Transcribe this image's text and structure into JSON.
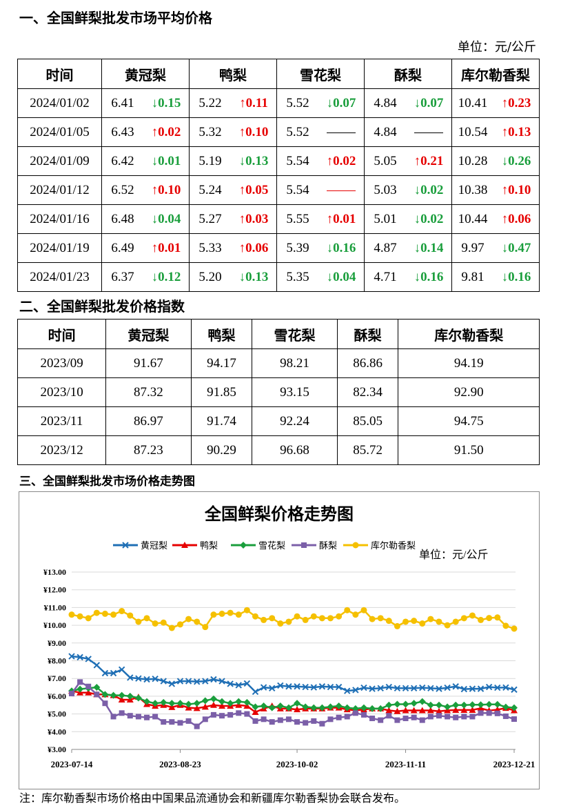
{
  "section1_title": "一、全国鲜梨批发市场平均价格",
  "section2_title": "二、全国鲜梨批发价格指数",
  "section3_title": "三、全国鲜梨批发市场价格走势图",
  "unit_label": "单位：元/公斤",
  "price_table": {
    "headers": [
      "时间",
      "黄冠梨",
      "鸭梨",
      "雪花梨",
      "酥梨",
      "库尔勒香梨"
    ],
    "rows": [
      {
        "date": "2024/01/02",
        "cells": [
          [
            "6.41",
            "↓0.15",
            "down"
          ],
          [
            "5.22",
            "↑0.11",
            "up"
          ],
          [
            "5.52",
            "↓0.07",
            "down"
          ],
          [
            "4.84",
            "↓0.07",
            "down"
          ],
          [
            "10.41",
            "↑0.23",
            "up"
          ]
        ]
      },
      {
        "date": "2024/01/05",
        "cells": [
          [
            "6.43",
            "↑0.02",
            "up"
          ],
          [
            "5.32",
            "↑0.10",
            "up"
          ],
          [
            "5.52",
            "——",
            "flat"
          ],
          [
            "4.84",
            "——",
            "flat"
          ],
          [
            "10.54",
            "↑0.13",
            "up"
          ]
        ]
      },
      {
        "date": "2024/01/09",
        "cells": [
          [
            "6.42",
            "↓0.01",
            "down"
          ],
          [
            "5.19",
            "↓0.13",
            "down"
          ],
          [
            "5.54",
            "↑0.02",
            "up"
          ],
          [
            "5.05",
            "↑0.21",
            "up"
          ],
          [
            "10.28",
            "↓0.26",
            "down"
          ]
        ]
      },
      {
        "date": "2024/01/12",
        "cells": [
          [
            "6.52",
            "↑0.10",
            "up"
          ],
          [
            "5.24",
            "↑0.05",
            "up"
          ],
          [
            "5.54",
            "——",
            "flatred"
          ],
          [
            "5.03",
            "↓0.02",
            "down"
          ],
          [
            "10.38",
            "↑0.10",
            "up"
          ]
        ]
      },
      {
        "date": "2024/01/16",
        "cells": [
          [
            "6.48",
            "↓0.04",
            "down"
          ],
          [
            "5.27",
            "↑0.03",
            "up"
          ],
          [
            "5.55",
            "↑0.01",
            "up"
          ],
          [
            "5.01",
            "↓0.02",
            "down"
          ],
          [
            "10.44",
            "↑0.06",
            "up"
          ]
        ]
      },
      {
        "date": "2024/01/19",
        "cells": [
          [
            "6.49",
            "↑0.01",
            "up"
          ],
          [
            "5.33",
            "↑0.06",
            "up"
          ],
          [
            "5.39",
            "↓0.16",
            "down"
          ],
          [
            "4.87",
            "↓0.14",
            "down"
          ],
          [
            "9.97",
            "↓0.47",
            "down"
          ]
        ]
      },
      {
        "date": "2024/01/23",
        "cells": [
          [
            "6.37",
            "↓0.12",
            "down"
          ],
          [
            "5.20",
            "↓0.13",
            "down"
          ],
          [
            "5.35",
            "↓0.04",
            "down"
          ],
          [
            "4.71",
            "↓0.16",
            "down"
          ],
          [
            "9.81",
            "↓0.16",
            "down"
          ]
        ]
      }
    ]
  },
  "index_table": {
    "headers": [
      "时间",
      "黄冠梨",
      "鸭梨",
      "雪花梨",
      "酥梨",
      "库尔勒香梨"
    ],
    "rows": [
      [
        "2023/09",
        "91.67",
        "94.17",
        "98.21",
        "86.86",
        "94.19"
      ],
      [
        "2023/10",
        "87.32",
        "91.85",
        "93.15",
        "82.34",
        "92.90"
      ],
      [
        "2023/11",
        "86.97",
        "91.74",
        "92.24",
        "85.05",
        "94.75"
      ],
      [
        "2023/12",
        "87.23",
        "90.29",
        "96.68",
        "85.72",
        "91.50"
      ]
    ]
  },
  "chart_data": {
    "type": "line",
    "title": "全国鲜梨价格走势图",
    "unit": "单位：元/公斤",
    "ylim": [
      3,
      13
    ],
    "ytick_labels": [
      "¥3.00",
      "¥4.00",
      "¥5.00",
      "¥6.00",
      "¥7.00",
      "¥8.00",
      "¥9.00",
      "¥10.00",
      "¥11.00",
      "¥12.00",
      "¥13.00"
    ],
    "xtick_labels": [
      "2023-07-14",
      "2023-08-23",
      "2023-10-02",
      "2023-11-11",
      "2023-12-21"
    ],
    "grid": true,
    "legend_position": "top",
    "series": [
      {
        "name": "黄冠梨",
        "color": "#1f6fb5",
        "marker": "x",
        "values": [
          8.25,
          8.2,
          8.1,
          7.75,
          7.3,
          7.3,
          7.5,
          7.05,
          7.0,
          6.95,
          6.98,
          6.85,
          6.7,
          6.85,
          6.85,
          6.82,
          6.85,
          6.95,
          6.85,
          6.7,
          6.62,
          6.72,
          6.25,
          6.5,
          6.45,
          6.6,
          6.55,
          6.55,
          6.52,
          6.5,
          6.55,
          6.52,
          6.52,
          6.3,
          6.35,
          6.48,
          6.42,
          6.45,
          6.52,
          6.45,
          6.45,
          6.45,
          6.48,
          6.45,
          6.42,
          6.48,
          6.55,
          6.4,
          6.42,
          6.42,
          6.52,
          6.48,
          6.49,
          6.37
        ]
      },
      {
        "name": "鸭梨",
        "color": "#e60000",
        "marker": "triangle",
        "values": [
          6.3,
          6.2,
          6.2,
          6.1,
          6.1,
          6.05,
          5.8,
          5.8,
          5.95,
          5.55,
          5.45,
          5.5,
          5.38,
          5.5,
          5.35,
          5.32,
          5.4,
          5.5,
          5.45,
          5.45,
          5.5,
          5.45,
          5.1,
          5.3,
          5.45,
          5.3,
          5.3,
          5.25,
          5.3,
          5.3,
          5.3,
          5.35,
          5.35,
          5.25,
          5.2,
          5.25,
          5.3,
          5.3,
          5.2,
          5.15,
          5.2,
          5.2,
          5.2,
          5.2,
          5.15,
          5.2,
          5.22,
          5.22,
          5.22,
          5.32,
          5.19,
          5.24,
          5.33,
          5.2
        ]
      },
      {
        "name": "雪花梨",
        "color": "#1a9e3c",
        "marker": "diamond",
        "values": [
          6.3,
          6.4,
          6.45,
          6.5,
          6.1,
          6.05,
          6.05,
          6.0,
          5.9,
          5.7,
          5.6,
          5.65,
          5.6,
          5.6,
          5.55,
          5.6,
          5.75,
          5.85,
          5.7,
          5.6,
          5.7,
          5.65,
          5.4,
          5.45,
          5.35,
          5.45,
          5.35,
          5.6,
          5.4,
          5.35,
          5.35,
          5.4,
          5.45,
          5.35,
          5.3,
          5.35,
          5.3,
          5.3,
          5.5,
          5.55,
          5.55,
          5.6,
          5.7,
          5.5,
          5.5,
          5.4,
          5.5,
          5.5,
          5.52,
          5.52,
          5.54,
          5.54,
          5.39,
          5.35
        ]
      },
      {
        "name": "酥梨",
        "color": "#7b5fa8",
        "marker": "square",
        "values": [
          6.15,
          6.8,
          6.55,
          6.1,
          5.6,
          4.85,
          5.05,
          4.9,
          4.85,
          4.8,
          4.85,
          4.55,
          4.55,
          4.5,
          4.6,
          4.3,
          4.7,
          4.95,
          4.9,
          4.95,
          5.05,
          5.0,
          4.6,
          4.7,
          4.55,
          4.65,
          4.7,
          4.55,
          4.5,
          4.6,
          4.45,
          4.7,
          4.8,
          4.85,
          5.05,
          4.95,
          4.75,
          4.65,
          4.9,
          4.65,
          4.75,
          4.8,
          4.65,
          4.85,
          4.9,
          4.85,
          4.8,
          4.85,
          4.85,
          5.05,
          5.05,
          5.03,
          4.87,
          4.71
        ]
      },
      {
        "name": "库尔勒香梨",
        "color": "#f5c000",
        "marker": "circle",
        "values": [
          10.6,
          10.5,
          10.4,
          10.7,
          10.65,
          10.6,
          10.8,
          10.55,
          10.2,
          10.4,
          10.1,
          10.15,
          9.85,
          10.05,
          10.35,
          10.2,
          9.9,
          10.6,
          10.65,
          10.7,
          10.6,
          10.85,
          10.5,
          10.3,
          10.4,
          10.1,
          10.2,
          10.5,
          10.3,
          10.5,
          10.4,
          10.4,
          10.5,
          10.85,
          10.6,
          10.85,
          10.35,
          10.4,
          10.25,
          9.95,
          10.2,
          10.25,
          10.1,
          10.35,
          10.2,
          10.0,
          10.2,
          10.4,
          10.55,
          10.3,
          10.41,
          10.44,
          9.97,
          9.81
        ]
      }
    ]
  },
  "footnote": "注：库尔勒香梨市场价格由中国果品流通协会和新疆库尔勒香梨协会联合发布。"
}
